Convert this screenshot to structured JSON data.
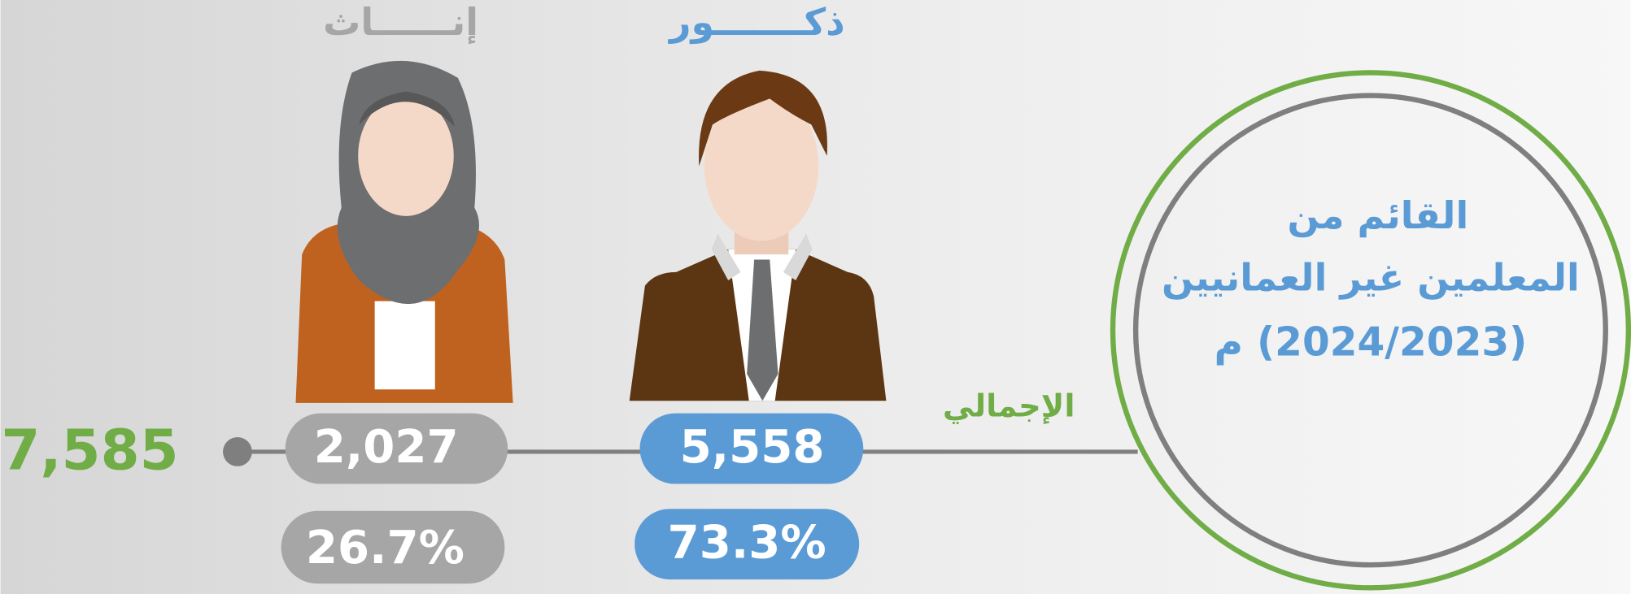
{
  "header": {
    "title_lines": [
      "القائم من",
      "المعلمين غير العمانيين",
      "(2024/2023) م"
    ]
  },
  "total": {
    "label": "الإجمالي",
    "value": "7,585"
  },
  "groups": [
    {
      "label": "ذكـــــــور",
      "count": "5,558",
      "percent": "73.3%"
    },
    {
      "label": "إنــــــاث",
      "count": "2,027",
      "percent": "26.7%"
    }
  ]
}
